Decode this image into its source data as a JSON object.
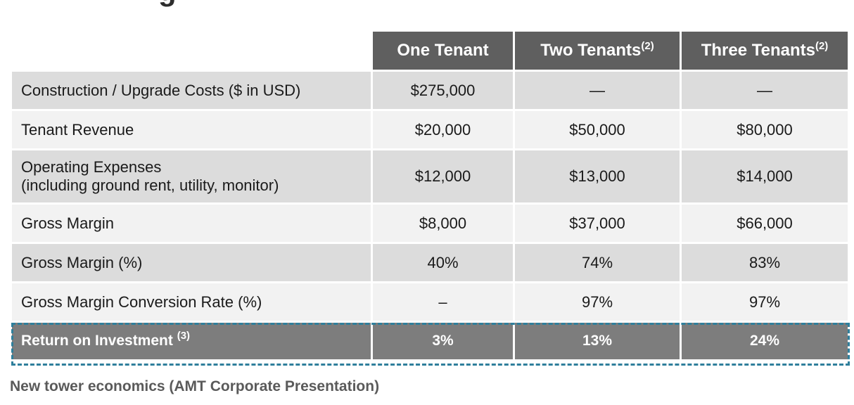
{
  "table": {
    "headers": [
      {
        "text": "",
        "sup": ""
      },
      {
        "text": "One Tenant",
        "sup": ""
      },
      {
        "text": "Two Tenants",
        "sup": "(2)"
      },
      {
        "text": "Three Tenants",
        "sup": "(2)"
      }
    ],
    "rows": [
      {
        "label": "Construction / Upgrade Costs ($ in USD)",
        "label2": "",
        "values": [
          "$275,000",
          "—",
          "—"
        ]
      },
      {
        "label": "Tenant Revenue",
        "label2": "",
        "values": [
          "$20,000",
          "$50,000",
          "$80,000"
        ]
      },
      {
        "label": "Operating Expenses",
        "label2": "(including ground rent, utility, monitor)",
        "values": [
          "$12,000",
          "$13,000",
          "$14,000"
        ]
      },
      {
        "label": "Gross Margin",
        "label2": "",
        "values": [
          "$8,000",
          "$37,000",
          "$66,000"
        ]
      },
      {
        "label": "Gross Margin (%)",
        "label2": "",
        "values": [
          "40%",
          "74%",
          "83%"
        ]
      },
      {
        "label": "Gross Margin Conversion Rate (%)",
        "label2": "",
        "values": [
          "–",
          "97%",
          "97%"
        ]
      }
    ],
    "highlight_row": {
      "label": "Return on Investment",
      "sup": "(3)",
      "values": [
        "3%",
        "13%",
        "24%"
      ]
    }
  },
  "caption": "New tower economics (AMT Corporate Presentation)",
  "colors": {
    "header_bg": "#5f5f5f",
    "highlight_bg": "#7d7d7d",
    "outline": "#2f7f9c"
  }
}
